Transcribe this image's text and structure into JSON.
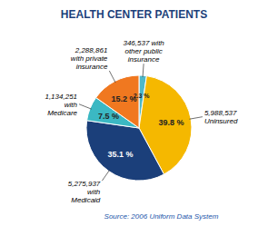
{
  "chart_data": {
    "type": "pie",
    "title": "HEALTH CENTER PATIENTS",
    "categories": [
      "346,537 with\nother public\ninsurance",
      "5,988,537\nUninsured",
      "5,275,937\nwith\nMedicaid",
      "1,134,251\nwith\nMedicare",
      "2,288,861\nwith private\ninsurance"
    ],
    "values": [
      2.3,
      39.8,
      35.1,
      7.5,
      15.2
    ],
    "value_labels": [
      "2.3 %",
      "39.8 %",
      "35.1 %",
      "7.5 %",
      "15.2 %"
    ],
    "data_labels": true,
    "colors": [
      "#4DB8C8",
      "#F5B800",
      "#1B3F7A",
      "#3BB8C3",
      "#F07820"
    ],
    "annotations": [
      "Source: 2006 Uniform Data System"
    ]
  }
}
